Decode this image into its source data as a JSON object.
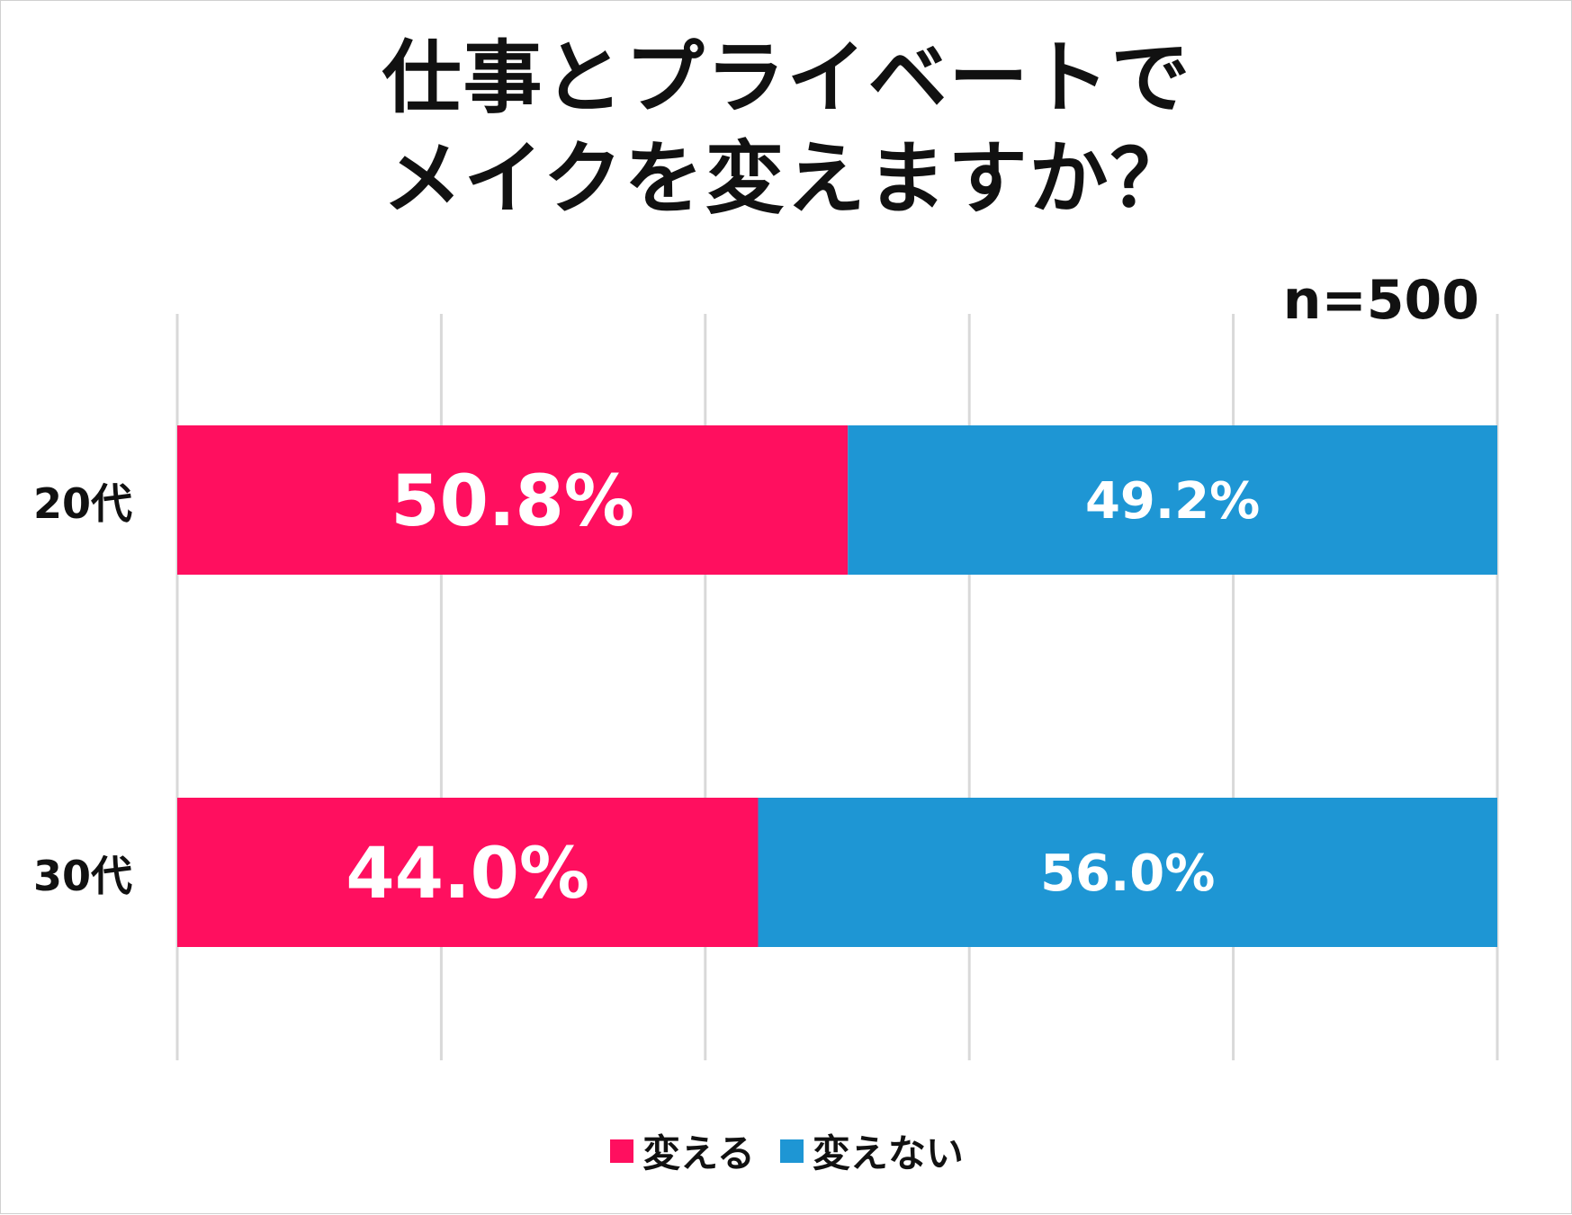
{
  "title_line1": "仕事とプライベートで",
  "title_line2": "メイクを変えますか？",
  "sample_note": "n=500",
  "chart_data": {
    "type": "bar",
    "orientation": "horizontal",
    "stacked": true,
    "percent_stacked": true,
    "categories": [
      "20代",
      "30代"
    ],
    "series": [
      {
        "name": "変える",
        "values": [
          50.8,
          44.0
        ],
        "labels": [
          "50.8%",
          "44.0%"
        ],
        "color": "#FF0F5F"
      },
      {
        "name": "変えない",
        "values": [
          49.2,
          56.0
        ],
        "labels": [
          "49.2%",
          "56.0%"
        ],
        "color": "#1E96D4"
      }
    ],
    "xlim": [
      0,
      100
    ],
    "grid": true,
    "legend_position": "bottom"
  }
}
